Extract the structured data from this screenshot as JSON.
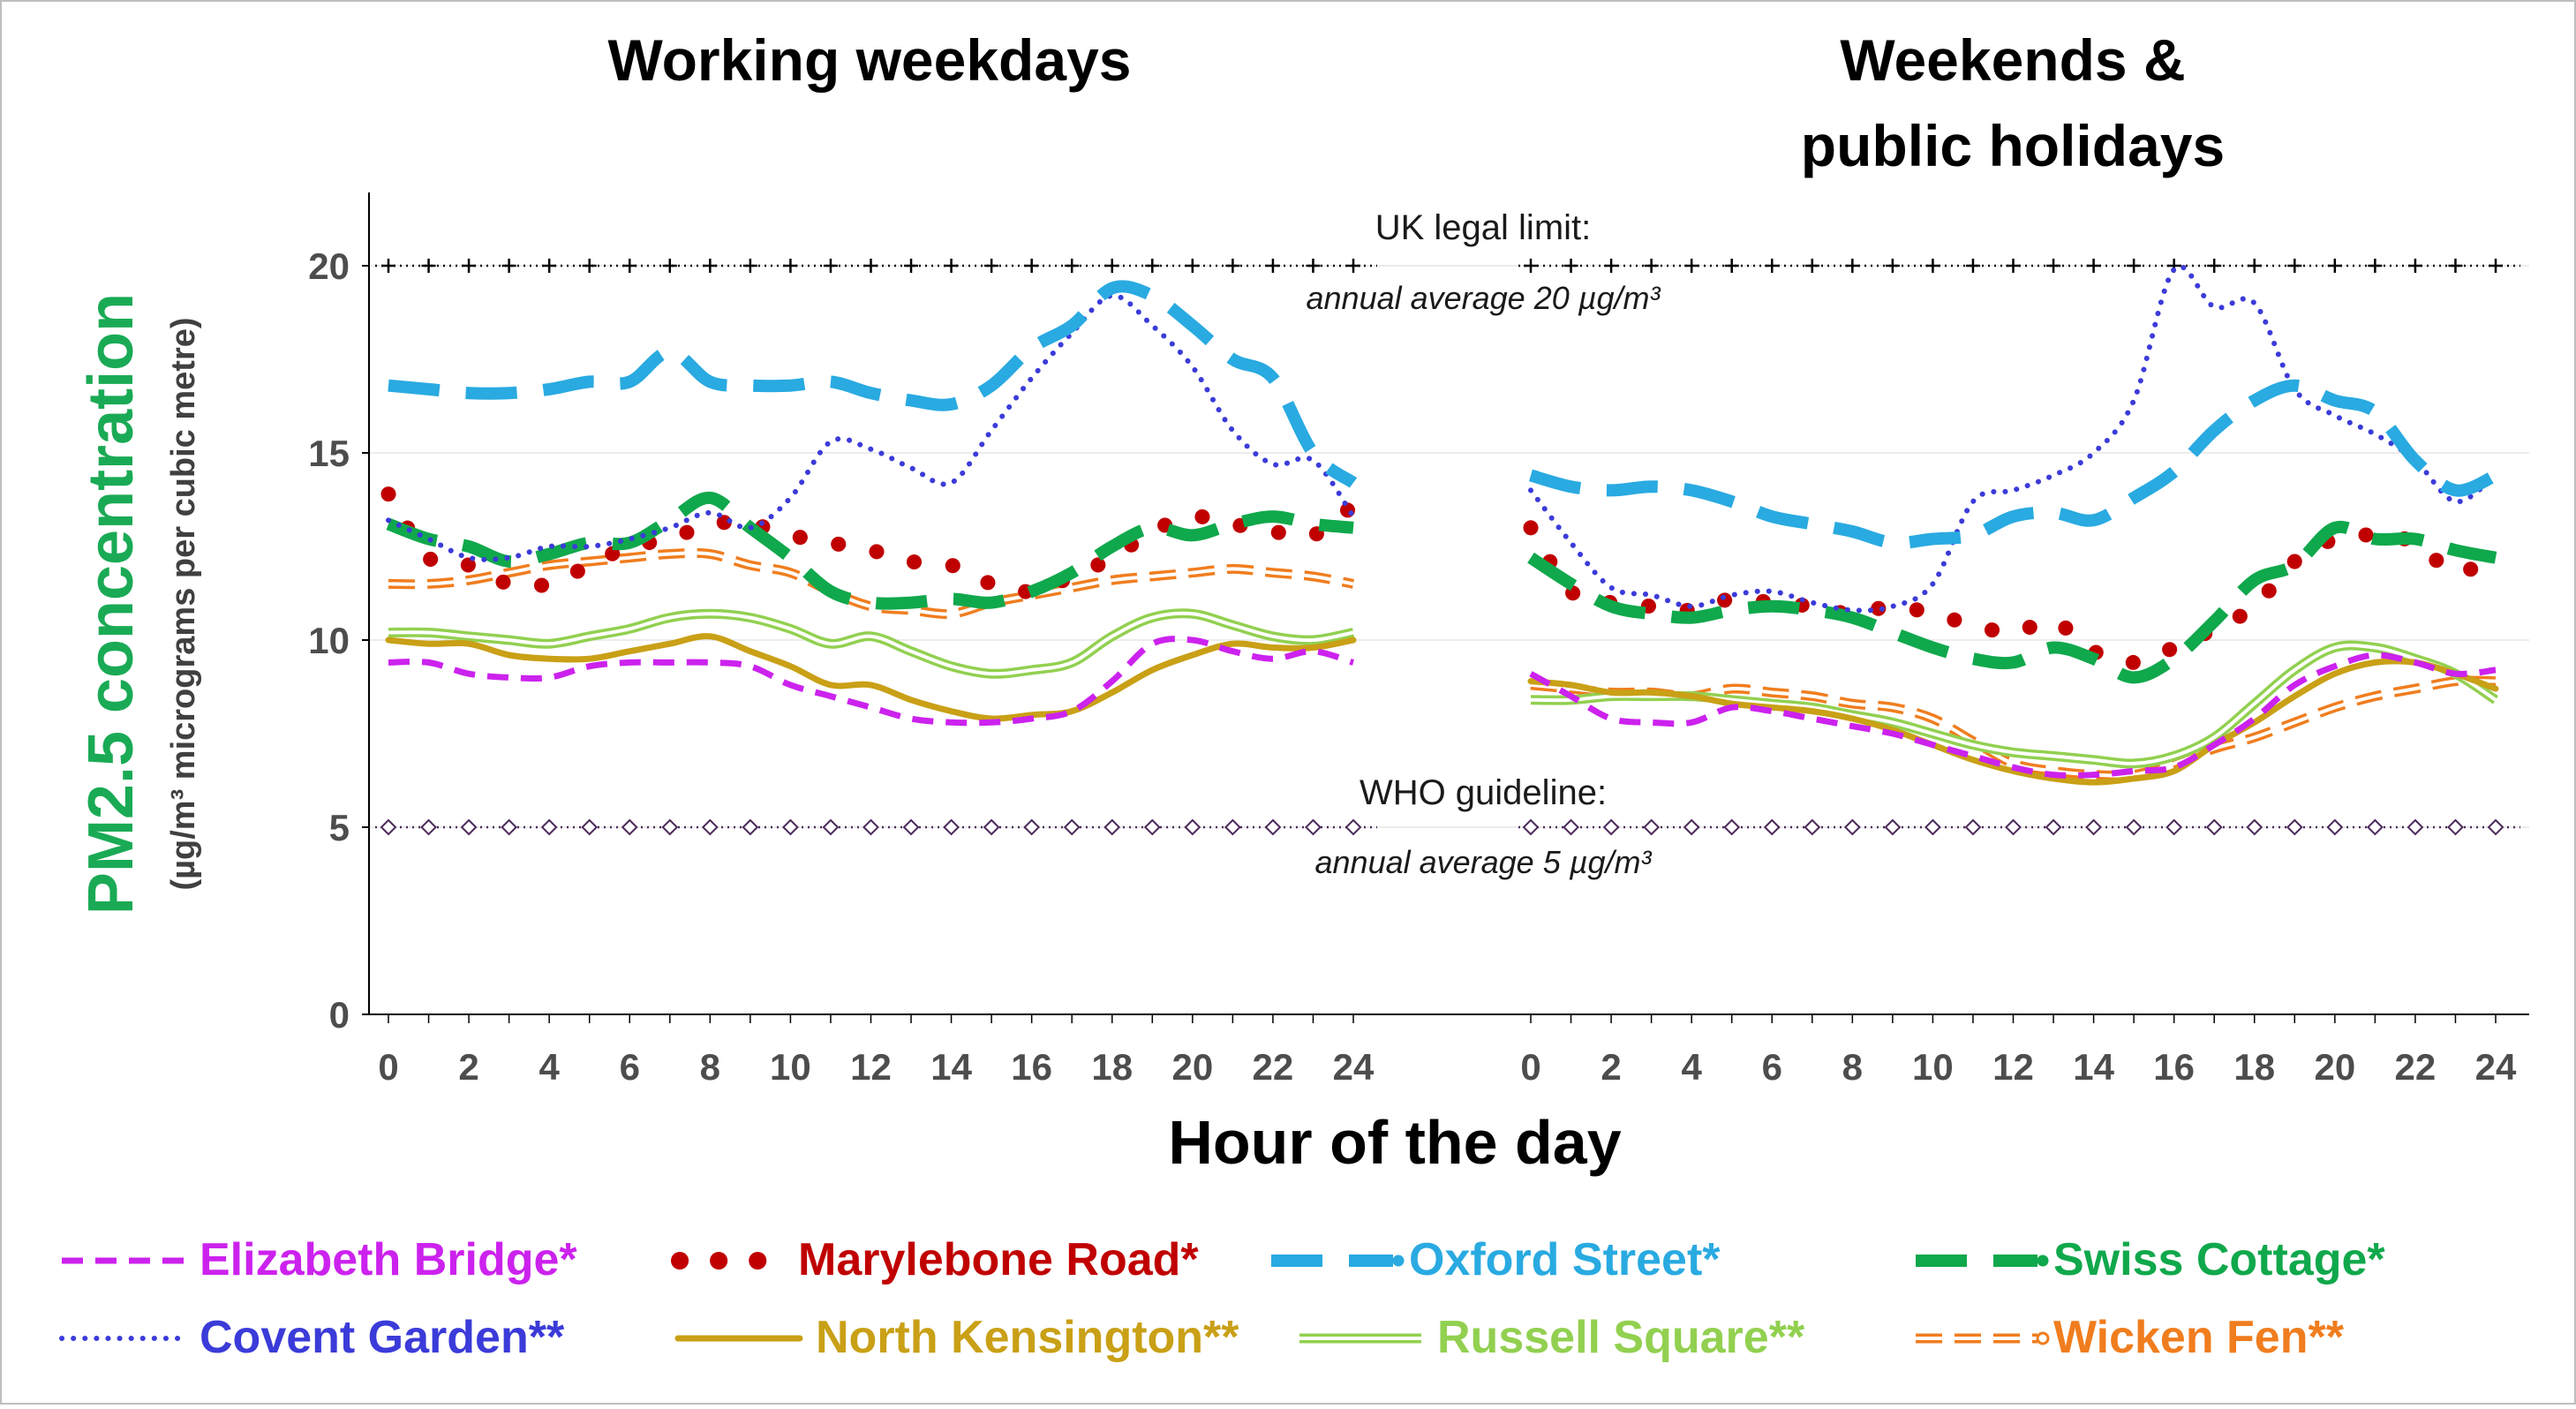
{
  "chart_data": {
    "type": "line",
    "ylabel": "PM2.5 concentration",
    "ylabel_sub": "(µg/m³ micrograms per cubic metre)",
    "xlabel": "Hour of the day",
    "ylim": [
      0,
      22
    ],
    "yticks": [
      "0",
      "5",
      "10",
      "15",
      "20"
    ],
    "xticks": [
      "0",
      "2",
      "4",
      "6",
      "8",
      "10",
      "12",
      "14",
      "16",
      "18",
      "20",
      "22",
      "24"
    ],
    "grid": true,
    "legend_position": "bottom",
    "reference_lines": [
      {
        "id": "uk",
        "value": 20,
        "label": "UK legal limit:",
        "sublabel": "annual average 20 µg/m³",
        "color": "#000000"
      },
      {
        "id": "who",
        "value": 5,
        "label": "WHO guideline:",
        "sublabel": "annual average 5 µg/m³",
        "color": "#4b2a5a"
      }
    ],
    "panels": [
      {
        "id": "weekdays",
        "title": [
          "Working weekdays"
        ]
      },
      {
        "id": "weekends",
        "title": [
          "Weekends &",
          "public holidays"
        ]
      }
    ],
    "x": [
      0,
      1,
      2,
      3,
      4,
      5,
      6,
      7,
      8,
      9,
      10,
      11,
      12,
      13,
      14,
      15,
      16,
      17,
      18,
      19,
      20,
      21,
      22,
      23,
      24
    ],
    "series": [
      {
        "name": "Elizabeth Bridge*",
        "color": "#cc22ee",
        "style": "dashed",
        "weekdays": [
          9.4,
          9.4,
          9.1,
          9.0,
          9.0,
          9.3,
          9.4,
          9.4,
          9.4,
          9.3,
          8.8,
          8.5,
          8.2,
          7.9,
          7.8,
          7.8,
          7.9,
          8.1,
          8.9,
          9.9,
          10.0,
          9.7,
          9.5,
          9.7,
          9.4
        ],
        "weekends": [
          9.1,
          8.5,
          7.9,
          7.8,
          7.8,
          8.2,
          8.1,
          7.9,
          7.7,
          7.5,
          7.2,
          6.9,
          6.6,
          6.4,
          6.4,
          6.5,
          6.6,
          7.2,
          7.9,
          8.8,
          9.3,
          9.6,
          9.4,
          9.1,
          9.2
        ]
      },
      {
        "name": "Marylebone Road*",
        "color": "#c00000",
        "style": "dots",
        "weekdays": [
          13.9,
          12.2,
          12.0,
          11.5,
          11.5,
          12.0,
          12.5,
          12.7,
          13.1,
          13.1,
          12.8,
          12.6,
          12.4,
          12.1,
          12.0,
          11.5,
          11.3,
          11.7,
          12.2,
          12.9,
          13.3,
          13.1,
          12.9,
          12.8,
          13.6
        ],
        "weekends": [
          13.0,
          11.3,
          11.0,
          10.9,
          10.8,
          11.1,
          11.0,
          10.9,
          10.7,
          10.9,
          10.7,
          10.4,
          10.2,
          10.5,
          9.7,
          9.4,
          9.8,
          10.3,
          10.9,
          12.1,
          12.7,
          12.8,
          12.6,
          11.8,
          12.3
        ]
      },
      {
        "name": "Oxford Street*",
        "color": "#29aae1",
        "style": "longdash",
        "weekdays": [
          16.8,
          16.7,
          16.6,
          16.6,
          16.7,
          16.9,
          16.9,
          17.7,
          16.9,
          16.8,
          16.8,
          16.9,
          16.6,
          16.4,
          16.3,
          16.8,
          17.8,
          18.4,
          19.4,
          19.2,
          18.4,
          17.5,
          17.0,
          15.0,
          14.2
        ],
        "weekends": [
          14.4,
          14.1,
          14.0,
          14.1,
          14.0,
          13.7,
          13.3,
          13.1,
          12.9,
          12.6,
          12.7,
          12.8,
          13.3,
          13.4,
          13.2,
          13.8,
          14.5,
          15.6,
          16.4,
          16.8,
          16.4,
          16.1,
          14.8,
          14.0,
          14.4
        ]
      },
      {
        "name": "Swiss Cottage*",
        "color": "#10a84c",
        "style": "longdash",
        "weekdays": [
          13.1,
          12.7,
          12.5,
          12.1,
          12.3,
          12.6,
          12.6,
          13.2,
          13.8,
          13.0,
          12.2,
          11.3,
          11.0,
          11.0,
          11.1,
          11.0,
          11.3,
          11.8,
          12.5,
          13.0,
          12.8,
          13.1,
          13.3,
          13.1,
          13.0
        ],
        "weekends": [
          12.2,
          11.5,
          10.9,
          10.7,
          10.6,
          10.8,
          10.9,
          10.8,
          10.6,
          10.2,
          9.8,
          9.5,
          9.4,
          9.8,
          9.5,
          9.0,
          9.5,
          10.5,
          11.6,
          12.0,
          13.0,
          12.7,
          12.7,
          12.4,
          12.2
        ]
      },
      {
        "name": "Covent Garden**",
        "color": "#3b3bd9",
        "style": "dotted",
        "weekdays": [
          13.2,
          12.7,
          12.2,
          12.2,
          12.5,
          12.5,
          12.7,
          13.0,
          13.4,
          13.0,
          13.8,
          15.3,
          15.1,
          14.6,
          14.2,
          15.6,
          17.0,
          18.2,
          19.2,
          18.4,
          17.3,
          15.6,
          14.7,
          14.8,
          13.3
        ],
        "weekends": [
          14.0,
          12.6,
          11.4,
          11.2,
          10.9,
          11.2,
          11.3,
          11.0,
          10.8,
          10.9,
          11.5,
          13.7,
          14.0,
          14.4,
          15.0,
          16.4,
          19.9,
          18.9,
          19.0,
          16.7,
          16.0,
          15.5,
          14.8,
          13.7,
          14.4
        ]
      },
      {
        "name": "North Kensington**",
        "color": "#c9a016",
        "style": "solid",
        "weekdays": [
          10.0,
          9.9,
          9.9,
          9.6,
          9.5,
          9.5,
          9.7,
          9.9,
          10.1,
          9.7,
          9.3,
          8.8,
          8.8,
          8.4,
          8.1,
          7.9,
          8.0,
          8.1,
          8.6,
          9.2,
          9.6,
          9.9,
          9.8,
          9.8,
          10.0
        ],
        "weekends": [
          8.9,
          8.8,
          8.6,
          8.6,
          8.5,
          8.3,
          8.2,
          8.1,
          7.9,
          7.6,
          7.2,
          6.8,
          6.5,
          6.3,
          6.2,
          6.3,
          6.5,
          7.2,
          7.8,
          8.5,
          9.1,
          9.4,
          9.4,
          9.1,
          8.7
        ]
      },
      {
        "name": "Russell Square**",
        "color": "#92d050",
        "style": "double",
        "weekdays": [
          10.2,
          10.2,
          10.1,
          10.0,
          9.9,
          10.1,
          10.3,
          10.6,
          10.7,
          10.6,
          10.3,
          9.9,
          10.1,
          9.7,
          9.3,
          9.1,
          9.2,
          9.4,
          10.1,
          10.6,
          10.7,
          10.4,
          10.1,
          10.0,
          10.2
        ],
        "weekends": [
          8.4,
          8.4,
          8.5,
          8.5,
          8.5,
          8.4,
          8.3,
          8.2,
          8.0,
          7.8,
          7.5,
          7.2,
          7.0,
          6.9,
          6.8,
          6.7,
          6.9,
          7.4,
          8.3,
          9.2,
          9.8,
          9.8,
          9.5,
          9.1,
          8.4
        ]
      },
      {
        "name": "Wicken Fen**",
        "color": "#f07d1e",
        "style": "dashed-double",
        "weekdays": [
          11.5,
          11.5,
          11.6,
          11.8,
          12.0,
          12.1,
          12.2,
          12.3,
          12.3,
          12.0,
          11.8,
          11.3,
          10.9,
          10.8,
          10.7,
          11.0,
          11.2,
          11.4,
          11.6,
          11.7,
          11.8,
          11.9,
          11.8,
          11.7,
          11.5
        ],
        "weekends": [
          8.8,
          8.7,
          8.6,
          8.6,
          8.5,
          8.7,
          8.6,
          8.5,
          8.3,
          8.2,
          7.9,
          7.3,
          6.7,
          6.5,
          6.4,
          6.4,
          6.7,
          7.1,
          7.4,
          7.8,
          8.2,
          8.5,
          8.7,
          8.9,
          8.9
        ]
      }
    ]
  }
}
